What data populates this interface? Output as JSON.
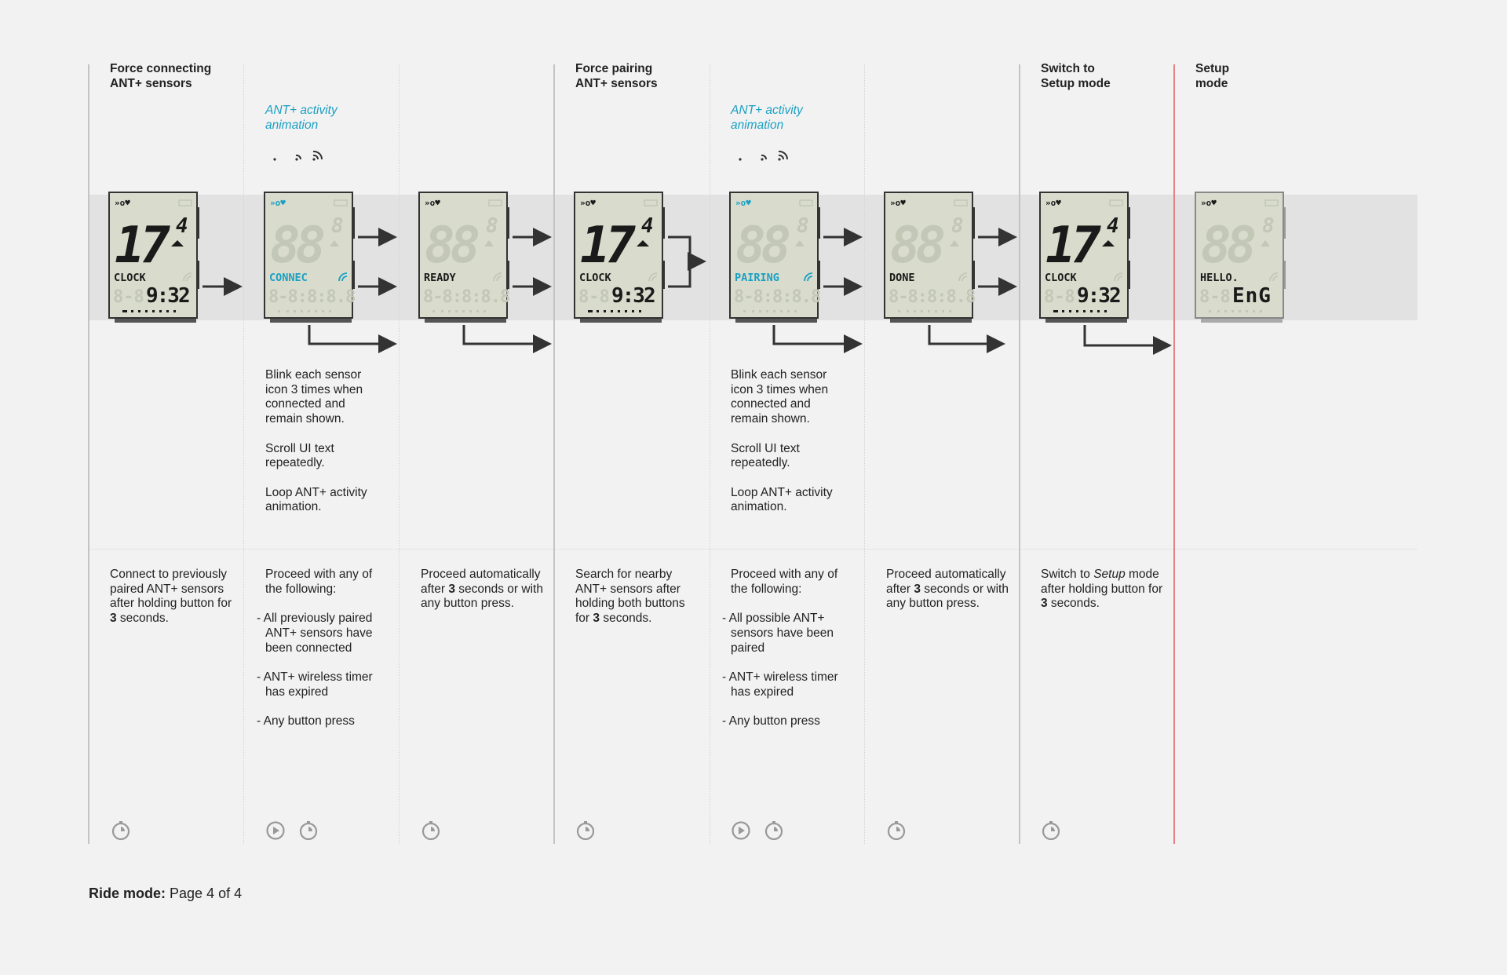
{
  "columns": [
    {
      "title": "Force connecting\nANT+ sensors",
      "screen": "clock",
      "label": "CLOCK",
      "description": [
        "Connect to previously paired ANT+ sensors after holding button for ",
        "3",
        " seconds."
      ],
      "icons": [
        "timer-icon"
      ]
    },
    {
      "screen": "connec",
      "label": "CONNEC",
      "animation_title": "ANT+ activity\nanimation",
      "notes": [
        "Blink each sensor icon 3 times when connected and remain shown.",
        "Scroll UI text repeatedly.",
        "Loop ANT+ activity animation."
      ],
      "lead": "Proceed with any of the following:",
      "bullets": [
        "- All previously paired ANT+ sensors have been connected",
        "- ANT+ wireless timer has expired",
        "- Any button press"
      ],
      "icons": [
        "play-icon",
        "timer-icon"
      ]
    },
    {
      "screen": "ready",
      "label": "READY",
      "description": [
        "Proceed automatically after ",
        "3",
        " seconds or with any button press."
      ],
      "icons": [
        "timer-icon"
      ]
    },
    {
      "title": "Force pairing\nANT+ sensors",
      "screen": "clock",
      "label": "CLOCK",
      "description": [
        "Search for nearby ANT+ sensors after holding both buttons for ",
        "3",
        " seconds."
      ],
      "icons": [
        "timer-icon"
      ]
    },
    {
      "screen": "pairing",
      "label": "PAIRING",
      "animation_title": "ANT+ activity\nanimation",
      "notes": [
        "Blink each sensor icon 3 times when connected and remain shown.",
        "Scroll UI text repeatedly.",
        "Loop ANT+ activity animation."
      ],
      "lead": "Proceed with any of the following:",
      "bullets": [
        "- All possible ANT+ sensors have been paired",
        "- ANT+ wireless timer has expired",
        "- Any button press"
      ],
      "icons": [
        "play-icon",
        "timer-icon"
      ]
    },
    {
      "screen": "done",
      "label": "DONE",
      "description": [
        "Proceed automatically after ",
        "3",
        " seconds or with any button press."
      ],
      "icons": [
        "timer-icon"
      ]
    },
    {
      "title": "Switch to\nSetup mode",
      "screen": "clock",
      "label": "CLOCK",
      "description": [
        "Switch to ",
        "Setup",
        " mode after holding button for ",
        "3",
        " seconds."
      ],
      "icons": [
        "timer-icon"
      ]
    },
    {
      "title": "Setup\nmode",
      "screen": "hello",
      "label": "HELLO.",
      "value": "EnG"
    }
  ],
  "display": {
    "speed": "17",
    "speed_decimal": "4",
    "time": "9:32",
    "ghost_digits": "88",
    "ghost_small": "8"
  },
  "colors": {
    "lcd_bg": "#d9dccd",
    "lcd_ghost": "#c3c7b6",
    "lcd_ink": "#1a1a1a",
    "accent": "#1aa0c3",
    "divider_red": "#e57f85"
  },
  "footer": {
    "label": "Ride mode:",
    "text": "Page 4 of 4"
  }
}
